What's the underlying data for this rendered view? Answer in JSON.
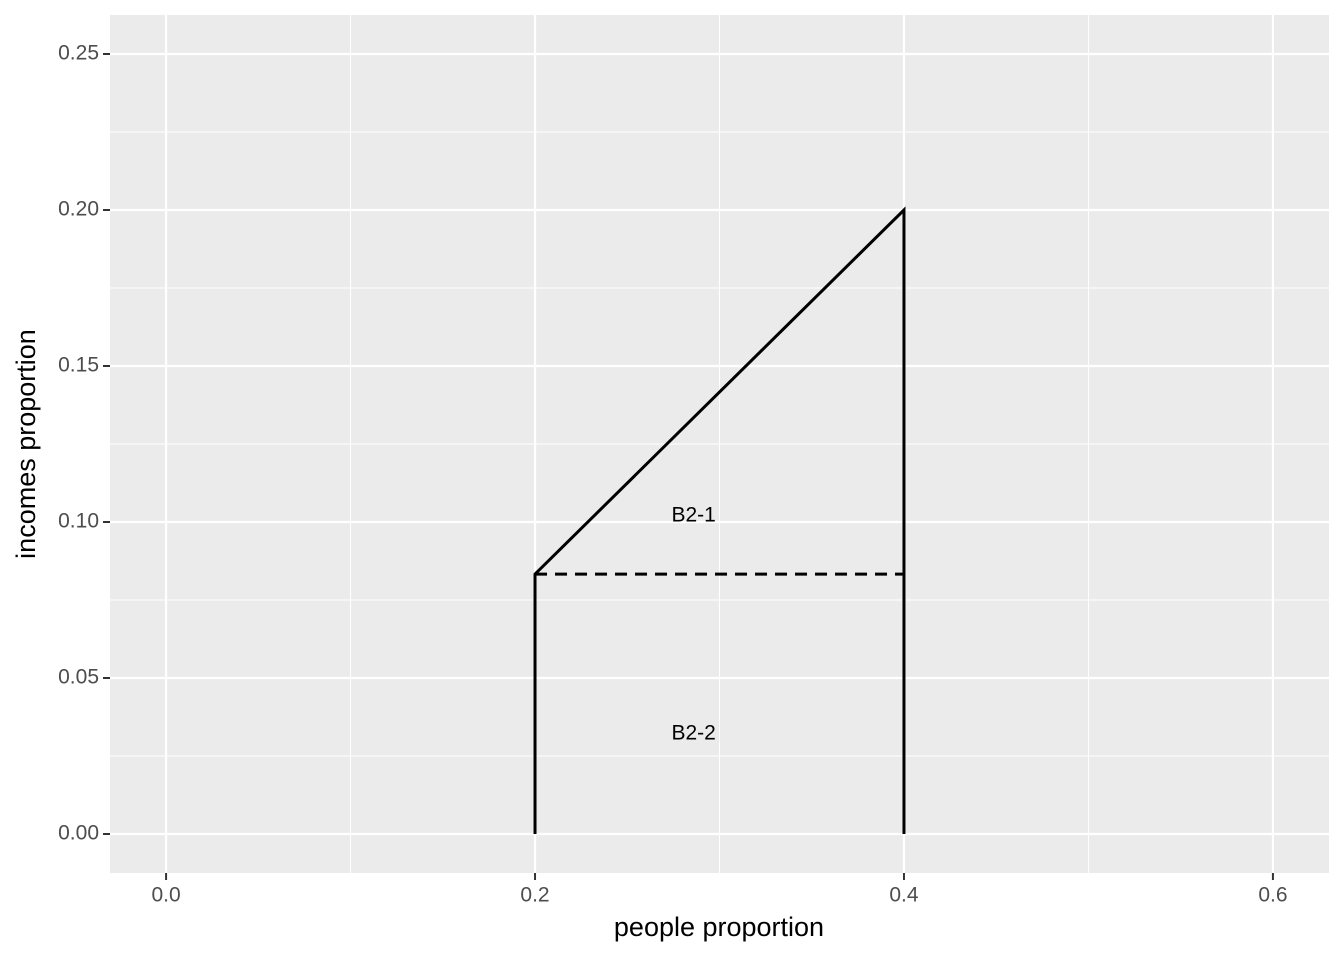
{
  "chart_data": {
    "type": "line",
    "xlabel": "people proportion",
    "ylabel": "incomes proportion",
    "xlim": [
      -0.0304,
      0.6304
    ],
    "ylim": [
      -0.0125,
      0.2625
    ],
    "xticks": [
      {
        "value": 0,
        "label": "0.0"
      },
      0.2,
      0.4,
      0.6
    ],
    "yticks": [
      {
        "value": 0,
        "label": "0.00"
      },
      {
        "value": 0.05,
        "label": "0.05"
      },
      {
        "value": 0.1,
        "label": "0.10"
      },
      {
        "value": 0.15,
        "label": "0.15"
      },
      {
        "value": 0.2,
        "label": "0.20"
      },
      {
        "value": 0.25,
        "label": "0.25"
      }
    ],
    "grid": true,
    "series": [
      {
        "color": "#000000",
        "dashed": false,
        "x": [
          0.2,
          0.2,
          0.4,
          0.4
        ],
        "values": [
          0,
          0.0833,
          0.2,
          0
        ]
      },
      {
        "color": "#000000",
        "dashed": true,
        "x": [
          0.2,
          0.4
        ],
        "values": [
          0.0833,
          0.0833
        ]
      }
    ],
    "annotations": [
      {
        "text": "B2-1",
        "x": 0.286,
        "y": 0.102
      },
      {
        "text": "B2-2",
        "x": 0.286,
        "y": 0.032
      }
    ]
  }
}
